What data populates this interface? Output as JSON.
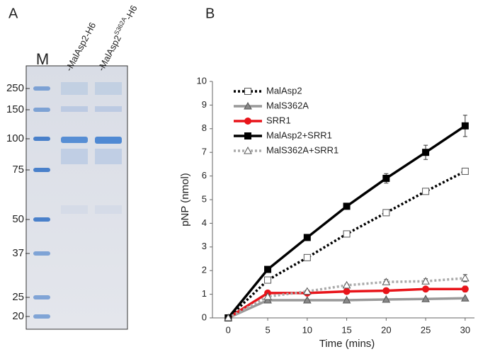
{
  "panel_a": {
    "label": "A",
    "marker_lane": "M",
    "lanes": [
      "-MalAsp2-H6",
      "-MalAsp2",
      "S362A",
      "-H6"
    ],
    "markers": [
      250,
      150,
      100,
      75,
      50,
      37,
      25,
      20
    ]
  },
  "chart_data": {
    "type": "line",
    "panel_label": "B",
    "x_label": "Time (mins)",
    "y_label": "pNP (nmol)",
    "x": [
      0,
      5,
      10,
      15,
      20,
      25,
      30
    ],
    "xlim": [
      -2,
      31
    ],
    "xticks": [
      0,
      5,
      10,
      15,
      20,
      25,
      30
    ],
    "ylim": [
      0,
      10
    ],
    "yticks": [
      0,
      1,
      2,
      3,
      4,
      5,
      6,
      7,
      8,
      9,
      10
    ],
    "grid": false,
    "legend": "upper left",
    "series": [
      {
        "name": "MalAsp2",
        "color": "#000000",
        "line_style": "dotted",
        "marker": "square",
        "marker_fill": "#ffffff",
        "values": [
          0,
          1.6,
          2.55,
          3.55,
          4.45,
          5.35,
          6.2
        ]
      },
      {
        "name": "MalS362A",
        "color": "#999999",
        "line_style": "solid",
        "marker": "triangle",
        "marker_fill": "#888888",
        "values": [
          0,
          0.75,
          0.75,
          0.75,
          0.78,
          0.8,
          0.83
        ]
      },
      {
        "name": "SRR1",
        "color": "#e8141a",
        "line_style": "solid",
        "marker": "circle",
        "marker_fill": "#e8141a",
        "values": [
          0,
          1.05,
          1.05,
          1.12,
          1.15,
          1.22,
          1.22
        ],
        "errors": [
          0,
          0.08,
          0.05,
          0.05,
          0.05,
          0.08,
          0.12
        ]
      },
      {
        "name": "MalAsp2+SRR1",
        "color": "#000000",
        "line_style": "solid",
        "marker": "square",
        "marker_fill": "#000000",
        "values": [
          0,
          2.05,
          3.4,
          4.72,
          5.9,
          7.0,
          8.12
        ],
        "errors": [
          0,
          0,
          0.05,
          0.05,
          0.2,
          0.3,
          0.45
        ]
      },
      {
        "name": "MalS362A+SRR1",
        "color": "#aaaaaa",
        "line_style": "dotted",
        "marker": "triangle",
        "marker_fill": "#ffffff",
        "values": [
          0,
          0.9,
          1.12,
          1.38,
          1.52,
          1.55,
          1.68
        ],
        "errors": [
          0,
          0.05,
          0.05,
          0.05,
          0.1,
          0.1,
          0.15
        ]
      }
    ]
  }
}
